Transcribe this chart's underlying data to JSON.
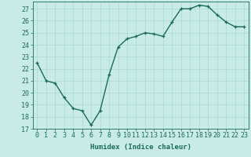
{
  "x": [
    0,
    1,
    2,
    3,
    4,
    5,
    6,
    7,
    8,
    9,
    10,
    11,
    12,
    13,
    14,
    15,
    16,
    17,
    18,
    19,
    20,
    21,
    22,
    23
  ],
  "y": [
    22.5,
    21.0,
    20.8,
    19.6,
    18.7,
    18.5,
    17.3,
    18.5,
    21.5,
    23.8,
    24.5,
    24.7,
    25.0,
    24.9,
    24.7,
    25.9,
    27.0,
    27.0,
    27.3,
    27.2,
    26.5,
    25.9,
    25.5,
    25.5
  ],
  "line_color": "#1a6b5a",
  "bg_color": "#c8ebe8",
  "grid_color": "#a8d8d4",
  "xlabel": "Humidex (Indice chaleur)",
  "ylabel_ticks": [
    17,
    18,
    19,
    20,
    21,
    22,
    23,
    24,
    25,
    26,
    27
  ],
  "ylim": [
    17,
    27.6
  ],
  "xlim": [
    -0.5,
    23.5
  ],
  "marker": "+",
  "marker_size": 3.5,
  "line_width": 1.0,
  "label_fontsize": 6.5,
  "tick_fontsize": 6.0,
  "font_family": "monospace"
}
